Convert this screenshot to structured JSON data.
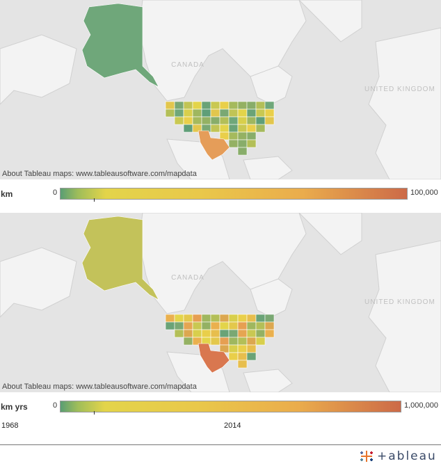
{
  "maps": [
    {
      "id": "map1",
      "credit": "About Tableau maps: www.tableausoftware.com/mapdata",
      "labels": {
        "canada": "CANADA",
        "uk": "UNITED KINGDOM"
      },
      "alaska_color": "#6fa77a",
      "texas_color": "#e59d59",
      "lower48_colors": [
        "#6fa77a",
        "#88ad6a",
        "#a5ba5d",
        "#c9c852",
        "#e3d44a",
        "#7aa873",
        "#5f9e78",
        "#d8cf4c",
        "#b3bf58",
        "#94b163",
        "#e9cf4a",
        "#6aa377",
        "#c1c455",
        "#e2c64d",
        "#9fb75f"
      ],
      "legend": {
        "title": "km",
        "min": "0",
        "max": "100,000"
      }
    },
    {
      "id": "map2",
      "credit": "About Tableau maps: www.tableausoftware.com/mapdata",
      "labels": {
        "canada": "CANADA",
        "uk": "UNITED KINGDOM"
      },
      "alaska_color": "#c3c25a",
      "texas_color": "#d9774f",
      "lower48_colors": [
        "#e3c84c",
        "#eab04e",
        "#c9c852",
        "#7aa873",
        "#e7be4d",
        "#d8cf4c",
        "#b3bf58",
        "#e69f52",
        "#e3d44a",
        "#94b163",
        "#e5a552",
        "#6aa377",
        "#e9cf4a",
        "#dca750",
        "#9fb75f"
      ],
      "legend": {
        "title": "km yrs",
        "min": "0",
        "max": "1,000,000"
      }
    }
  ],
  "slider": {
    "min_label": "1968",
    "current_label": "2014",
    "position": 0.5
  },
  "footer": {
    "logo_text": "+ableau"
  },
  "colors": {
    "water": "#e4e4e4",
    "land": "#f3f3f3",
    "border": "#c8c8c8"
  }
}
